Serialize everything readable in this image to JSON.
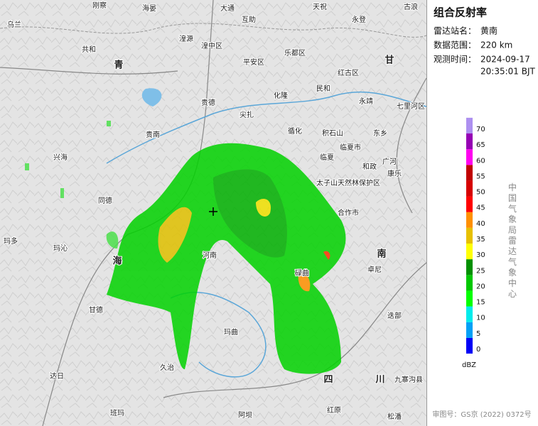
{
  "sidebar": {
    "title": "组合反射率",
    "station_label": "雷达站名：",
    "station": "黄南",
    "range_label": "数据范围：",
    "range": "220 km",
    "time_label": "观测时间：",
    "date": "2024-09-17",
    "time": "20:35:01 BJT",
    "agency": "中国气象局雷达气象中心",
    "approval": "审图号：GS京 (2022) 0372号"
  },
  "legend": {
    "unit": "dBZ",
    "ticks": [
      0,
      5,
      10,
      15,
      20,
      25,
      30,
      35,
      40,
      45,
      50,
      55,
      60,
      65,
      70
    ],
    "colors": [
      "#0000f6",
      "#01a0f6",
      "#00ecec",
      "#01ff00",
      "#00c800",
      "#019000",
      "#ffff00",
      "#e7c000",
      "#ff9000",
      "#ff0000",
      "#d60000",
      "#c00000",
      "#ff00f0",
      "#9600b4",
      "#ad90f0"
    ]
  },
  "places": [
    "刚察",
    "海晏",
    "大通",
    "天祝",
    "古浪",
    "乌兰",
    "互助",
    "永登",
    "共和",
    "湟源",
    "湟中区",
    "平安区",
    "乐都区",
    "青",
    "甘",
    "红古区",
    "民和",
    "化隆",
    "永靖",
    "七里河区",
    "贵德",
    "尖扎",
    "循化",
    "积石山",
    "东乡",
    "贵南",
    "兴海",
    "临夏市",
    "临夏",
    "广河",
    "和政",
    "康乐",
    "太子山天然林保护区",
    "同德",
    "合作市",
    "玛多",
    "玛沁",
    "河南",
    "海",
    "南",
    "碌曲",
    "卓尼",
    "甘德",
    "迭部",
    "玛曲",
    "达日",
    "久治",
    "四",
    "川",
    "九寨沟县",
    "班玛",
    "阿坝",
    "红原",
    "松潘"
  ]
}
